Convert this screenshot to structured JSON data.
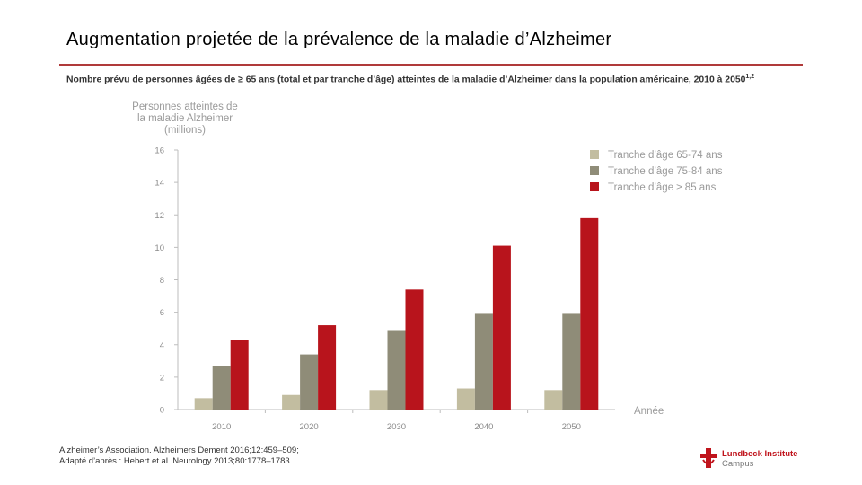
{
  "slide": {
    "title": "Augmentation projetée de la prévalence de la maladie d’Alzheimer",
    "subtitle": "Nombre prévu de personnes âgées de ≥ 65 ans (total et par tranche d’âge) atteintes de la maladie d’Alzheimer dans la population américaine, 2010 à 2050",
    "subtitle_sup": "1,2",
    "footer_line1": "Alzheimer’s Association. Alzheimers Dement 2016;12:459–509;",
    "footer_line2": "Adapté d’après : Hebert et al. Neurology 2013;80:1778–1783",
    "logo_name": "Lundbeck Institute",
    "logo_sub": "Campus"
  },
  "colors": {
    "accent": "#b03a3a",
    "series": [
      "#c2bda0",
      "#8f8c78",
      "#b8141c"
    ],
    "axis": "#bdbdbd"
  },
  "chart_data": {
    "type": "bar",
    "title": "",
    "ylabel_lines": [
      "Personnes atteintes de",
      "la maladie Alzheimer",
      "(millions)"
    ],
    "xlabel": "Année",
    "categories": [
      "2010",
      "2020",
      "2030",
      "2040",
      "2050"
    ],
    "ylim": [
      0,
      16
    ],
    "yticks": [
      0,
      2,
      4,
      6,
      8,
      10,
      12,
      14,
      16
    ],
    "legend_position": "top-right",
    "series": [
      {
        "name": "Tranche d’âge 65-74 ans",
        "values": [
          0.7,
          0.9,
          1.2,
          1.3,
          1.2
        ]
      },
      {
        "name": "Tranche d’âge 75-84 ans",
        "values": [
          2.7,
          3.4,
          4.9,
          5.9,
          5.9
        ]
      },
      {
        "name": "Tranche d’âge ≥ 85 ans",
        "values": [
          4.3,
          5.2,
          7.4,
          10.1,
          11.8
        ]
      }
    ]
  }
}
